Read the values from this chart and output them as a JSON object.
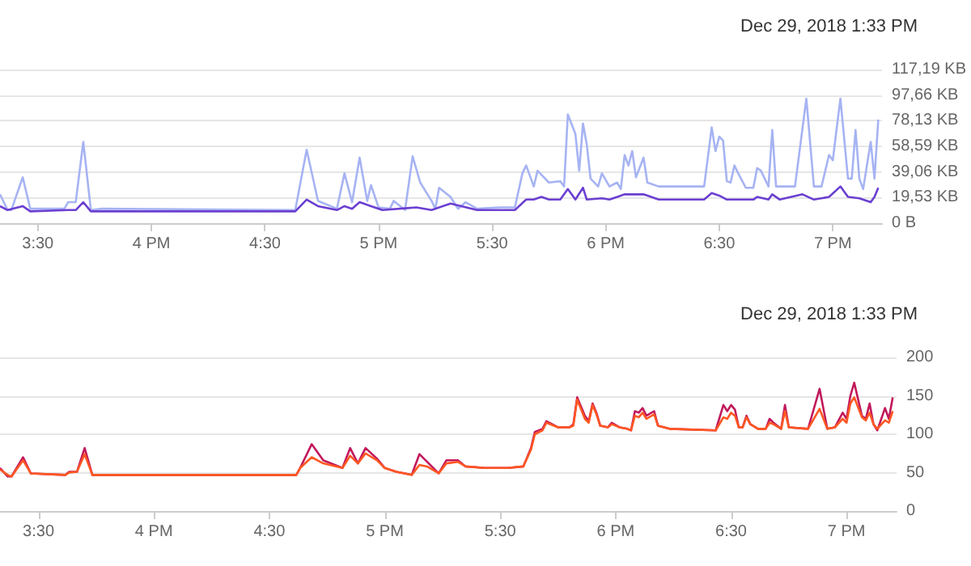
{
  "chart_data": [
    {
      "type": "line",
      "title": "Dec 29, 2018 1:33 PM",
      "grid": "y",
      "marker": "none",
      "xlim": [
        "2018-12-29T15:20",
        "2018-12-29T19:13"
      ],
      "xticks": [
        {
          "value": "2018-12-29T15:30",
          "label": "3:30"
        },
        {
          "value": "2018-12-29T16:00",
          "label": "4 PM"
        },
        {
          "value": "2018-12-29T16:30",
          "label": "4:30"
        },
        {
          "value": "2018-12-29T17:00",
          "label": "5 PM"
        },
        {
          "value": "2018-12-29T17:30",
          "label": "5:30"
        },
        {
          "value": "2018-12-29T18:00",
          "label": "6 PM"
        },
        {
          "value": "2018-12-29T18:30",
          "label": "6:30"
        },
        {
          "value": "2018-12-29T19:00",
          "label": "7 PM"
        }
      ],
      "ylim": [
        0,
        117.19
      ],
      "yticks": [
        {
          "value": 0,
          "label": "0 B"
        },
        {
          "value": 19.53,
          "label": "19,53 KB"
        },
        {
          "value": 39.06,
          "label": "39,06 KB"
        },
        {
          "value": 58.59,
          "label": "58,59 KB"
        },
        {
          "value": 78.13,
          "label": "78,13 KB"
        },
        {
          "value": 97.66,
          "label": "97,66 KB"
        },
        {
          "value": 117.19,
          "label": "117,19 KB"
        }
      ],
      "series": [
        {
          "color": "#a6b3f3",
          "x": [
            "2018-12-29T15:20",
            "2018-12-29T15:22",
            "2018-12-29T15:23",
            "2018-12-29T15:26",
            "2018-12-29T15:28",
            "2018-12-29T15:37",
            "2018-12-29T15:38",
            "2018-12-29T15:40",
            "2018-12-29T15:42",
            "2018-12-29T15:44",
            "2018-12-29T15:47",
            "2018-12-29T16:38",
            "2018-12-29T16:41",
            "2018-12-29T16:44",
            "2018-12-29T16:49",
            "2018-12-29T16:51",
            "2018-12-29T16:53",
            "2018-12-29T16:55",
            "2018-12-29T16:57",
            "2018-12-29T16:58",
            "2018-12-29T17:00",
            "2018-12-29T17:03",
            "2018-12-29T17:04",
            "2018-12-29T17:07",
            "2018-12-29T17:09",
            "2018-12-29T17:11",
            "2018-12-29T17:14",
            "2018-12-29T17:15",
            "2018-12-29T17:16",
            "2018-12-29T17:19",
            "2018-12-29T17:21",
            "2018-12-29T17:23",
            "2018-12-29T17:26",
            "2018-12-29T17:32",
            "2018-12-29T17:36",
            "2018-12-29T17:38",
            "2018-12-29T17:39",
            "2018-12-29T17:41",
            "2018-12-29T17:42",
            "2018-12-29T17:45",
            "2018-12-29T17:48",
            "2018-12-29T17:49",
            "2018-12-29T17:50",
            "2018-12-29T17:52",
            "2018-12-29T17:53",
            "2018-12-29T17:54",
            "2018-12-29T17:55",
            "2018-12-29T17:56",
            "2018-12-29T17:58",
            "2018-12-29T17:59",
            "2018-12-29T18:01",
            "2018-12-29T18:03",
            "2018-12-29T18:04",
            "2018-12-29T18:05",
            "2018-12-29T18:06",
            "2018-12-29T18:07",
            "2018-12-29T18:08",
            "2018-12-29T18:10",
            "2018-12-29T18:11",
            "2018-12-29T18:14",
            "2018-12-29T18:26",
            "2018-12-29T18:28",
            "2018-12-29T18:29",
            "2018-12-29T18:30",
            "2018-12-29T18:31",
            "2018-12-29T18:32",
            "2018-12-29T18:33",
            "2018-12-29T18:34",
            "2018-12-29T18:35",
            "2018-12-29T18:37",
            "2018-12-29T18:39",
            "2018-12-29T18:40",
            "2018-12-29T18:41",
            "2018-12-29T18:43",
            "2018-12-29T18:44",
            "2018-12-29T18:45",
            "2018-12-29T18:50",
            "2018-12-29T18:53",
            "2018-12-29T18:55",
            "2018-12-29T18:57",
            "2018-12-29T18:59",
            "2018-12-29T19:00",
            "2018-12-29T19:01",
            "2018-12-29T19:02",
            "2018-12-29T19:04",
            "2018-12-29T19:05",
            "2018-12-29T19:06",
            "2018-12-29T19:07",
            "2018-12-29T19:08",
            "2018-12-29T19:10",
            "2018-12-29T19:11",
            "2018-12-29T19:12"
          ],
          "values": [
            22,
            10,
            10,
            35,
            11,
            11,
            16,
            16,
            62,
            10,
            11,
            10,
            56,
            17,
            11,
            38,
            16,
            50,
            17,
            29,
            12,
            11,
            17,
            10,
            51,
            31,
            17,
            11,
            27,
            20,
            11,
            16,
            11,
            12,
            12,
            38,
            44,
            28,
            40,
            31,
            32,
            28,
            83,
            68,
            40,
            76,
            60,
            34,
            28,
            38,
            28,
            31,
            26,
            52,
            44,
            55,
            35,
            50,
            31,
            28,
            28,
            73,
            55,
            66,
            63,
            32,
            31,
            44,
            38,
            27,
            27,
            42,
            40,
            28,
            71,
            28,
            28,
            95,
            28,
            28,
            52,
            48,
            72,
            95,
            34,
            34,
            71,
            34,
            26,
            62,
            34,
            79
          ]
        },
        {
          "color": "#6b3fd1",
          "x": [
            "2018-12-29T15:20",
            "2018-12-29T15:22",
            "2018-12-29T15:26",
            "2018-12-29T15:28",
            "2018-12-29T15:38",
            "2018-12-29T15:40",
            "2018-12-29T15:42",
            "2018-12-29T15:44",
            "2018-12-29T16:38",
            "2018-12-29T16:41",
            "2018-12-29T16:44",
            "2018-12-29T16:49",
            "2018-12-29T16:51",
            "2018-12-29T16:53",
            "2018-12-29T16:55",
            "2018-12-29T16:58",
            "2018-12-29T17:01",
            "2018-12-29T17:10",
            "2018-12-29T17:14",
            "2018-12-29T17:19",
            "2018-12-29T17:26",
            "2018-12-29T17:36",
            "2018-12-29T17:39",
            "2018-12-29T17:41",
            "2018-12-29T17:43",
            "2018-12-29T17:45",
            "2018-12-29T17:48",
            "2018-12-29T17:50",
            "2018-12-29T17:52",
            "2018-12-29T17:54",
            "2018-12-29T17:55",
            "2018-12-29T17:59",
            "2018-12-29T18:01",
            "2018-12-29T18:05",
            "2018-12-29T18:10",
            "2018-12-29T18:14",
            "2018-12-29T18:26",
            "2018-12-29T18:28",
            "2018-12-29T18:30",
            "2018-12-29T18:32",
            "2018-12-29T18:39",
            "2018-12-29T18:40",
            "2018-12-29T18:43",
            "2018-12-29T18:44",
            "2018-12-29T18:46",
            "2018-12-29T18:52",
            "2018-12-29T18:55",
            "2018-12-29T18:59",
            "2018-12-29T19:02",
            "2018-12-29T19:04",
            "2018-12-29T19:07",
            "2018-12-29T19:10",
            "2018-12-29T19:11",
            "2018-12-29T19:12"
          ],
          "values": [
            13,
            10,
            13,
            9,
            10,
            10,
            16,
            9,
            9,
            18,
            13,
            10,
            13,
            11,
            16,
            13,
            10,
            12,
            10,
            15,
            10,
            10,
            18,
            18,
            20,
            18,
            18,
            26,
            18,
            27,
            18,
            19,
            18,
            22,
            22,
            18,
            18,
            23,
            21,
            18,
            18,
            20,
            18,
            22,
            18,
            22,
            18,
            20,
            28,
            20,
            19,
            16,
            20,
            27
          ]
        }
      ]
    },
    {
      "type": "line",
      "title": "Dec 29, 2018 1:33 PM",
      "grid": "y",
      "marker": "none",
      "xlim": [
        "2018-12-29T15:20",
        "2018-12-29T19:13"
      ],
      "xticks": [
        {
          "value": "2018-12-29T15:30",
          "label": "3:30"
        },
        {
          "value": "2018-12-29T16:00",
          "label": "4 PM"
        },
        {
          "value": "2018-12-29T16:30",
          "label": "4:30"
        },
        {
          "value": "2018-12-29T17:00",
          "label": "5 PM"
        },
        {
          "value": "2018-12-29T17:30",
          "label": "5:30"
        },
        {
          "value": "2018-12-29T18:00",
          "label": "6 PM"
        },
        {
          "value": "2018-12-29T18:30",
          "label": "6:30"
        },
        {
          "value": "2018-12-29T19:00",
          "label": "7 PM"
        }
      ],
      "ylim": [
        0,
        200
      ],
      "yticks": [
        0,
        50,
        100,
        150,
        200
      ],
      "series": [
        {
          "color": "#c2185b",
          "x": [
            "2018-12-29T15:20",
            "2018-12-29T15:22",
            "2018-12-29T15:23",
            "2018-12-29T15:26",
            "2018-12-29T15:28",
            "2018-12-29T15:37",
            "2018-12-29T15:38",
            "2018-12-29T15:40",
            "2018-12-29T15:42",
            "2018-12-29T15:44",
            "2018-12-29T15:47",
            "2018-12-29T16:37",
            "2018-12-29T16:38",
            "2018-12-29T16:41",
            "2018-12-29T16:44",
            "2018-12-29T16:49",
            "2018-12-29T16:51",
            "2018-12-29T16:53",
            "2018-12-29T16:55",
            "2018-12-29T16:58",
            "2018-12-29T17:00",
            "2018-12-29T17:03",
            "2018-12-29T17:07",
            "2018-12-29T17:09",
            "2018-12-29T17:11",
            "2018-12-29T17:14",
            "2018-12-29T17:16",
            "2018-12-29T17:19",
            "2018-12-29T17:21",
            "2018-12-29T17:26",
            "2018-12-29T17:32",
            "2018-12-29T17:36",
            "2018-12-29T17:38",
            "2018-12-29T17:39",
            "2018-12-29T17:41",
            "2018-12-29T17:42",
            "2018-12-29T17:45",
            "2018-12-29T17:48",
            "2018-12-29T17:49",
            "2018-12-29T17:50",
            "2018-12-29T17:52",
            "2018-12-29T17:53",
            "2018-12-29T17:54",
            "2018-12-29T17:55",
            "2018-12-29T17:56",
            "2018-12-29T17:58",
            "2018-12-29T17:59",
            "2018-12-29T18:01",
            "2018-12-29T18:03",
            "2018-12-29T18:04",
            "2018-12-29T18:05",
            "2018-12-29T18:06",
            "2018-12-29T18:07",
            "2018-12-29T18:08",
            "2018-12-29T18:10",
            "2018-12-29T18:11",
            "2018-12-29T18:14",
            "2018-12-29T18:26",
            "2018-12-29T18:28",
            "2018-12-29T18:29",
            "2018-12-29T18:30",
            "2018-12-29T18:31",
            "2018-12-29T18:32",
            "2018-12-29T18:33",
            "2018-12-29T18:34",
            "2018-12-29T18:35",
            "2018-12-29T18:37",
            "2018-12-29T18:39",
            "2018-12-29T18:40",
            "2018-12-29T18:41",
            "2018-12-29T18:43",
            "2018-12-29T18:44",
            "2018-12-29T18:45",
            "2018-12-29T18:50",
            "2018-12-29T18:53",
            "2018-12-29T18:55",
            "2018-12-29T18:57",
            "2018-12-29T18:59",
            "2018-12-29T19:00",
            "2018-12-29T19:01",
            "2018-12-29T19:02",
            "2018-12-29T19:04",
            "2018-12-29T19:05",
            "2018-12-29T19:06",
            "2018-12-29T19:07",
            "2018-12-29T19:08",
            "2018-12-29T19:10",
            "2018-12-29T19:11",
            "2018-12-29T19:12"
          ],
          "values": [
            56,
            45,
            45,
            70,
            49,
            47,
            51,
            51,
            82,
            47,
            47,
            47,
            56,
            87,
            66,
            56,
            82,
            62,
            82,
            68,
            56,
            51,
            47,
            74,
            64,
            49,
            66,
            66,
            58,
            56,
            56,
            58,
            82,
            103,
            107,
            117,
            109,
            109,
            113,
            148,
            124,
            117,
            140,
            128,
            111,
            109,
            115,
            109,
            107,
            105,
            130,
            128,
            134,
            124,
            130,
            111,
            107,
            105,
            138,
            130,
            138,
            132,
            109,
            109,
            124,
            113,
            107,
            107,
            120,
            115,
            107,
            138,
            109,
            107,
            159,
            107,
            109,
            128,
            120,
            150,
            167,
            124,
            120,
            140,
            113,
            105,
            134,
            120,
            148
          ]
        },
        {
          "color": "#ff5722",
          "x": [
            "2018-12-29T15:20",
            "2018-12-29T15:22",
            "2018-12-29T15:23",
            "2018-12-29T15:26",
            "2018-12-29T15:28",
            "2018-12-29T15:37",
            "2018-12-29T15:38",
            "2018-12-29T15:40",
            "2018-12-29T15:42",
            "2018-12-29T15:44",
            "2018-12-29T15:47",
            "2018-12-29T16:37",
            "2018-12-29T16:38",
            "2018-12-29T16:41",
            "2018-12-29T16:44",
            "2018-12-29T16:49",
            "2018-12-29T16:51",
            "2018-12-29T16:53",
            "2018-12-29T16:55",
            "2018-12-29T16:58",
            "2018-12-29T17:00",
            "2018-12-29T17:03",
            "2018-12-29T17:07",
            "2018-12-29T17:09",
            "2018-12-29T17:11",
            "2018-12-29T17:14",
            "2018-12-29T17:16",
            "2018-12-29T17:19",
            "2018-12-29T17:21",
            "2018-12-29T17:26",
            "2018-12-29T17:32",
            "2018-12-29T17:36",
            "2018-12-29T17:38",
            "2018-12-29T17:39",
            "2018-12-29T17:41",
            "2018-12-29T17:42",
            "2018-12-29T17:45",
            "2018-12-29T17:48",
            "2018-12-29T17:49",
            "2018-12-29T17:50",
            "2018-12-29T17:52",
            "2018-12-29T17:53",
            "2018-12-29T17:54",
            "2018-12-29T17:55",
            "2018-12-29T17:56",
            "2018-12-29T17:58",
            "2018-12-29T17:59",
            "2018-12-29T18:01",
            "2018-12-29T18:03",
            "2018-12-29T18:04",
            "2018-12-29T18:05",
            "2018-12-29T18:06",
            "2018-12-29T18:07",
            "2018-12-29T18:08",
            "2018-12-29T18:10",
            "2018-12-29T18:11",
            "2018-12-29T18:14",
            "2018-12-29T18:26",
            "2018-12-29T18:28",
            "2018-12-29T18:29",
            "2018-12-29T18:30",
            "2018-12-29T18:31",
            "2018-12-29T18:32",
            "2018-12-29T18:33",
            "2018-12-29T18:34",
            "2018-12-29T18:35",
            "2018-12-29T18:37",
            "2018-12-29T18:39",
            "2018-12-29T18:40",
            "2018-12-29T18:41",
            "2018-12-29T18:43",
            "2018-12-29T18:44",
            "2018-12-29T18:45",
            "2018-12-29T18:50",
            "2018-12-29T18:53",
            "2018-12-29T18:55",
            "2018-12-29T18:57",
            "2018-12-29T18:59",
            "2018-12-29T19:00",
            "2018-12-29T19:01",
            "2018-12-29T19:02",
            "2018-12-29T19:04",
            "2018-12-29T19:05",
            "2018-12-29T19:06",
            "2018-12-29T19:07",
            "2018-12-29T19:08",
            "2018-12-29T19:10",
            "2018-12-29T19:11",
            "2018-12-29T19:12"
          ],
          "values": [
            54,
            47,
            45,
            66,
            49,
            47,
            50,
            51,
            74,
            47,
            47,
            47,
            56,
            70,
            62,
            56,
            72,
            62,
            75,
            66,
            56,
            51,
            47,
            60,
            58,
            49,
            62,
            64,
            58,
            56,
            56,
            58,
            80,
            100,
            105,
            115,
            109,
            109,
            111,
            145,
            120,
            115,
            138,
            126,
            111,
            109,
            113,
            109,
            107,
            105,
            124,
            122,
            128,
            120,
            126,
            111,
            107,
            105,
            122,
            120,
            128,
            124,
            109,
            109,
            122,
            113,
            107,
            107,
            115,
            113,
            107,
            130,
            109,
            107,
            133,
            107,
            109,
            120,
            115,
            140,
            148,
            122,
            118,
            128,
            113,
            107,
            118,
            115,
            130
          ]
        }
      ]
    }
  ]
}
